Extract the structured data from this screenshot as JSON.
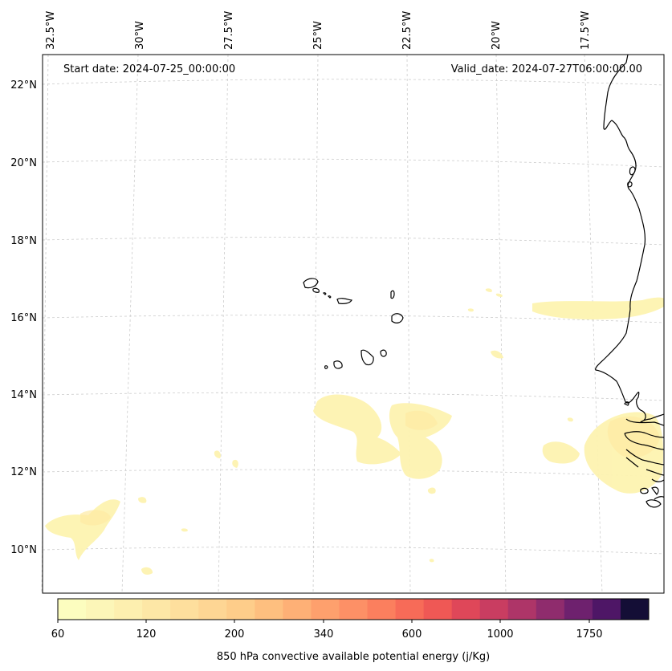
{
  "map": {
    "start_date": "Start date: 2024-07-25_00:00:00",
    "valid_date": "Valid_date: 2024-07-27T06:00:00.00",
    "lon_labels": [
      "32.5°W",
      "30°W",
      "27.5°W",
      "25°W",
      "22.5°W",
      "20°W",
      "17.5°W"
    ],
    "lat_labels": [
      "22°N",
      "20°N",
      "18°N",
      "16°N",
      "14°N",
      "12°N",
      "10°N"
    ],
    "gridlines": true,
    "features": [
      "Cape Verde islands",
      "West African coastline (Western Sahara, Mauritania, Senegal, Gambia, Guinea-Bissau)"
    ],
    "field_color": "#fdf3b0"
  },
  "colorbar": {
    "label": "850 hPa convective available potential energy (j/Kg)",
    "ticks": [
      "60",
      "120",
      "200",
      "340",
      "600",
      "1000",
      "1750"
    ],
    "colors": [
      "#fcfdbf",
      "#fcf6b8",
      "#fdefaf",
      "#fde7a6",
      "#fedf9d",
      "#fed694",
      "#fecd8a",
      "#febf7f",
      "#feb076",
      "#fea06d",
      "#fd9066",
      "#fb7f5e",
      "#f76b58",
      "#ef5855",
      "#df4759",
      "#c93d61",
      "#ae3568",
      "#8f2c6d",
      "#6e216e",
      "#4e1666",
      "#140e36"
    ]
  }
}
